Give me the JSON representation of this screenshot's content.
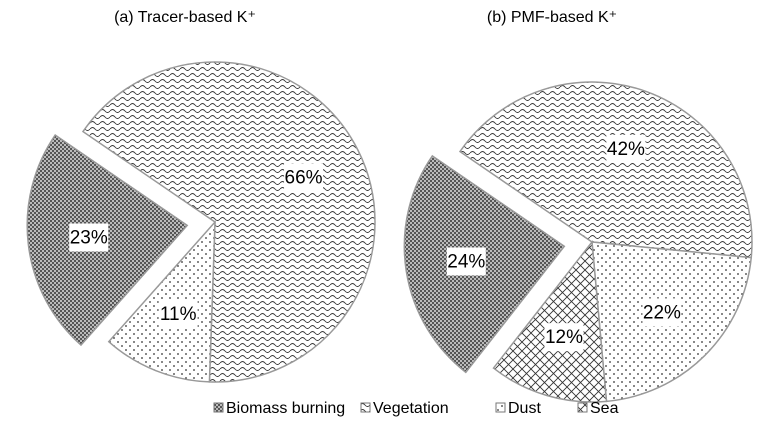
{
  "chart_data": [
    {
      "type": "pie",
      "title": "(a) Tracer-based K⁺",
      "categories": [
        "Biomass burning",
        "Vegetation",
        "Dust"
      ],
      "values": [
        23,
        66,
        11
      ],
      "value_labels": [
        "23%",
        "66%",
        "11%"
      ]
    },
    {
      "type": "pie",
      "title": "(b) PMF-based K⁺",
      "categories": [
        "Biomass burning",
        "Vegetation",
        "Dust",
        "Sea"
      ],
      "values": [
        24,
        42,
        22,
        12
      ],
      "value_labels": [
        "24%",
        "42%",
        "22%",
        "12%"
      ]
    }
  ],
  "legend": [
    "Biomass burning",
    "Vegetation",
    "Dust",
    "Sea"
  ]
}
